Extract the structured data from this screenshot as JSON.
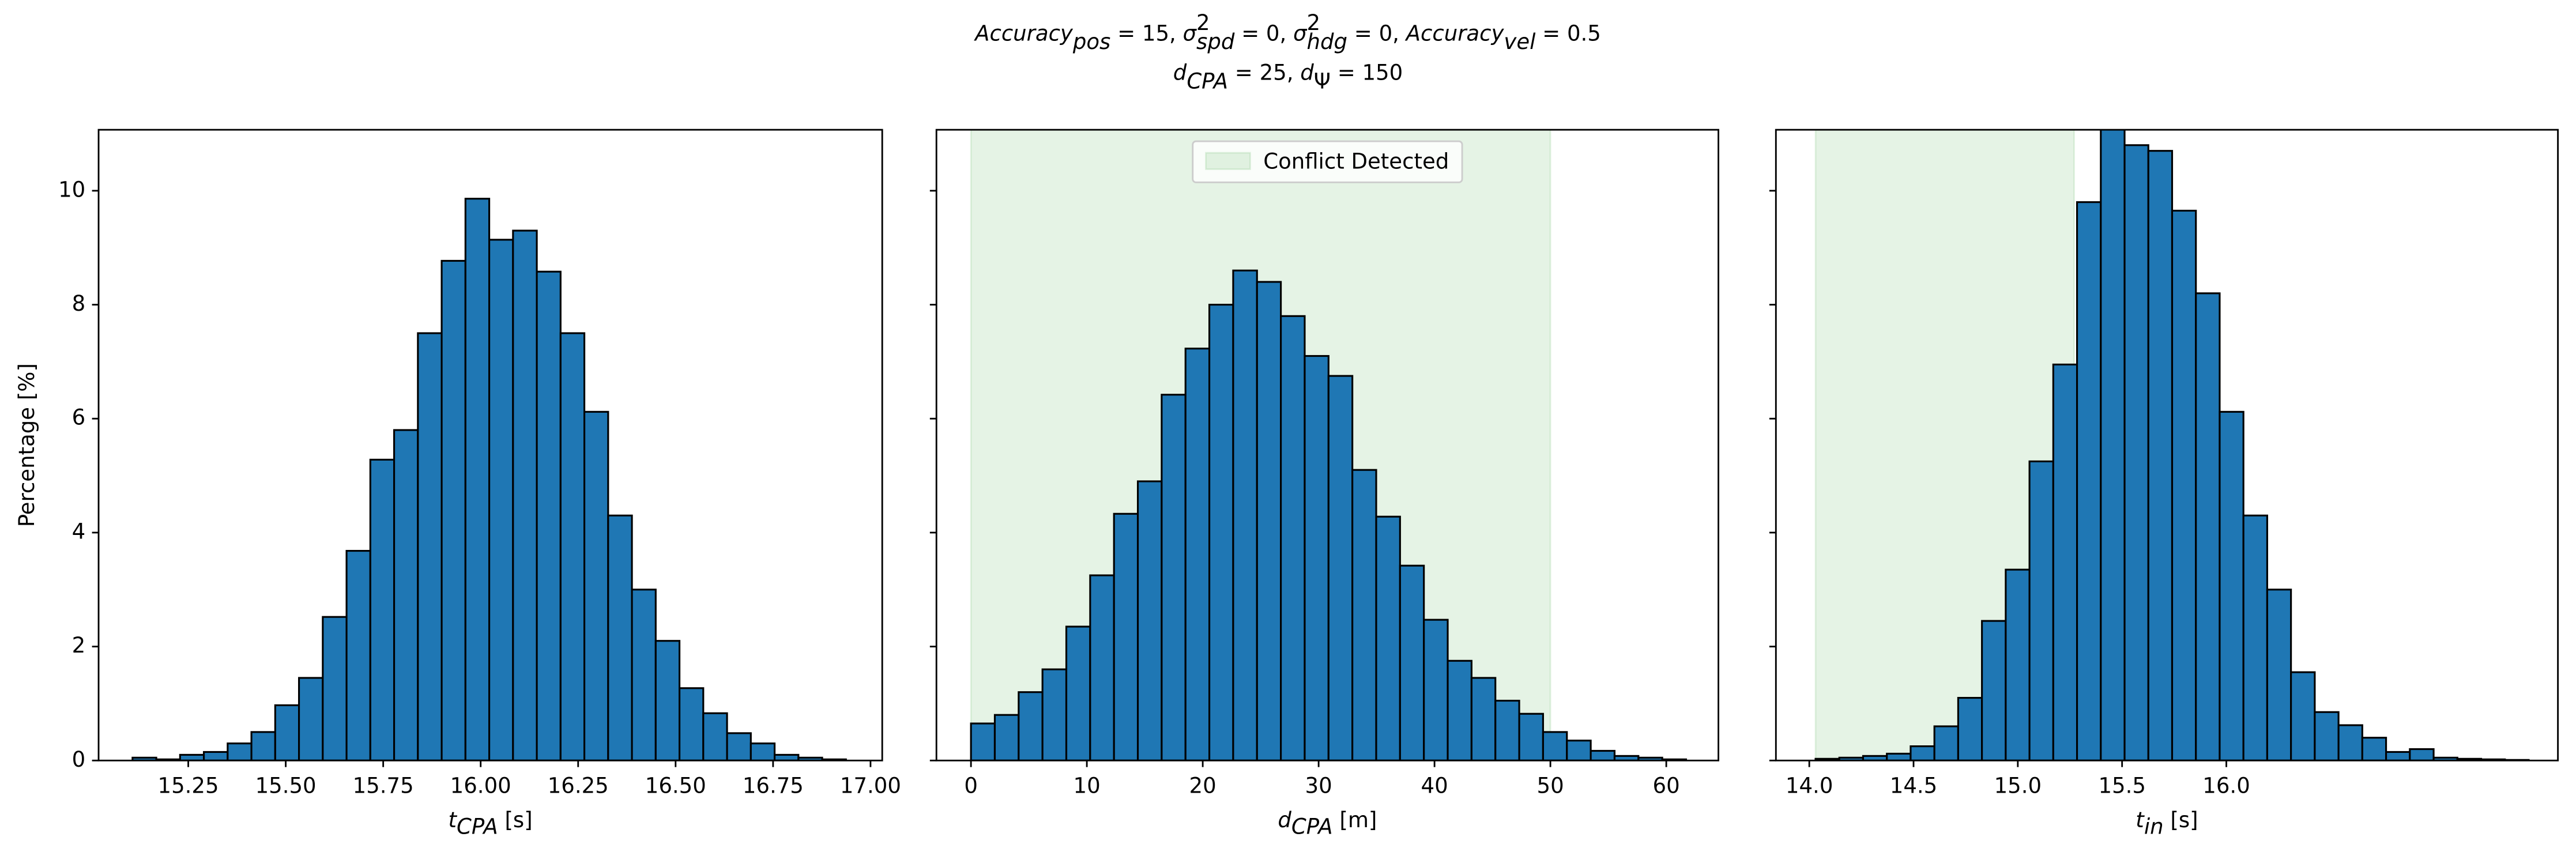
{
  "title": [
    [
      {
        "text": "Accuracy",
        "italic": true
      },
      {
        "text": "pos",
        "italic": true,
        "script": "sub"
      },
      {
        "text": " = 15, "
      },
      {
        "text": "σ",
        "italic": true
      },
      {
        "text": "2",
        "script": "sup"
      },
      {
        "text": "spd",
        "italic": true,
        "script": "sub",
        "stack": true
      },
      {
        "text": " = 0, "
      },
      {
        "text": "σ",
        "italic": true
      },
      {
        "text": "2",
        "script": "sup"
      },
      {
        "text": "hdg",
        "italic": true,
        "script": "sub",
        "stack": true
      },
      {
        "text": " = 0, "
      },
      {
        "text": "Accuracy",
        "italic": true
      },
      {
        "text": "vel",
        "italic": true,
        "script": "sub"
      },
      {
        "text": " = 0.5"
      }
    ],
    [
      {
        "text": "d",
        "italic": true
      },
      {
        "text": "CPA",
        "italic": true,
        "script": "sub"
      },
      {
        "text": " = 25, "
      },
      {
        "text": "d",
        "italic": true
      },
      {
        "text": "Ψ",
        "script": "sub"
      },
      {
        "text": " = 150"
      }
    ]
  ],
  "chart_data": [
    {
      "type": "histogram",
      "ylabel": "Percentage [%]",
      "xlabel": [
        {
          "text": "t",
          "italic": true
        },
        {
          "text": "CPA",
          "italic": true,
          "script": "sub"
        },
        {
          "text": " [s]"
        }
      ],
      "bins": [
        15.107,
        15.168,
        15.229,
        15.29,
        15.351,
        15.412,
        15.473,
        15.534,
        15.595,
        15.656,
        15.717,
        15.778,
        15.839,
        15.9,
        15.961,
        16.022,
        16.083,
        16.144,
        16.205,
        16.266,
        16.327,
        16.388,
        16.449,
        16.51,
        16.571,
        16.632,
        16.693,
        16.754,
        16.815,
        16.876,
        16.937
      ],
      "values": [
        0.05,
        0.02,
        0.1,
        0.15,
        0.3,
        0.5,
        0.97,
        1.45,
        2.52,
        3.68,
        5.28,
        5.8,
        7.5,
        8.77,
        9.86,
        9.14,
        9.3,
        8.58,
        7.5,
        6.12,
        4.3,
        3.0,
        2.1,
        1.27,
        0.83,
        0.48,
        0.3,
        0.1,
        0.05,
        0.02
      ],
      "color": "#1f77b4",
      "edgecolor": "#000000",
      "xlim": [
        15.02,
        17.03
      ],
      "xticks": [
        15.25,
        {
          "value": 15.5,
          "label": "15.50"
        },
        15.75,
        {
          "value": 16.0,
          "label": "16.00"
        },
        16.25,
        {
          "value": 16.5,
          "label": "16.50"
        },
        16.75,
        {
          "value": 17.0,
          "label": "17.00"
        }
      ],
      "ylim": [
        0,
        11.07
      ],
      "yticks": [
        0,
        2,
        4,
        6,
        8,
        10
      ],
      "ytick_labels": true
    },
    {
      "type": "histogram",
      "xlabel": [
        {
          "text": "d",
          "italic": true
        },
        {
          "text": "CPA",
          "italic": true,
          "script": "sub"
        },
        {
          "text": " [m]"
        }
      ],
      "bins": [
        0,
        2.057,
        4.114,
        6.171,
        8.228,
        10.285,
        12.342,
        14.399,
        16.456,
        18.513,
        20.57,
        22.627,
        24.684,
        26.741,
        28.798,
        30.855,
        32.912,
        34.969,
        37.026,
        39.083,
        41.14,
        43.197,
        45.254,
        47.311,
        49.368,
        51.425,
        53.482,
        55.539,
        57.596,
        59.653,
        61.71
      ],
      "values": [
        0.65,
        0.8,
        1.2,
        1.6,
        2.35,
        3.25,
        4.33,
        4.9,
        6.42,
        7.23,
        8.0,
        8.6,
        8.4,
        7.8,
        7.1,
        6.75,
        5.1,
        4.28,
        3.42,
        2.47,
        1.75,
        1.45,
        1.05,
        0.82,
        0.5,
        0.35,
        0.17,
        0.08,
        0.05,
        0.02
      ],
      "color": "#1f77b4",
      "edgecolor": "#000000",
      "xlim": [
        -2.98,
        64.5
      ],
      "xticks": [
        0,
        10,
        20,
        30,
        40,
        50,
        60
      ],
      "ylim": [
        0,
        11.07
      ],
      "yticks": [
        0,
        2,
        4,
        6,
        8,
        10
      ],
      "ytick_labels": false,
      "span": [
        0,
        50
      ],
      "span_color": "#2ca02c",
      "span_label": "Conflict Detected",
      "legend": "upper center"
    },
    {
      "type": "histogram",
      "xlabel": [
        {
          "text": "t",
          "italic": true
        },
        {
          "text": "in",
          "italic": true,
          "script": "sub"
        },
        {
          "text": " [s]"
        }
      ],
      "bins": [
        14.03,
        14.144,
        14.258,
        14.372,
        14.486,
        14.6,
        14.714,
        14.828,
        14.942,
        15.056,
        15.17,
        15.284,
        15.398,
        15.512,
        15.626,
        15.74,
        15.854,
        15.968,
        16.082,
        16.196,
        16.31,
        16.424,
        16.538,
        16.652,
        16.766,
        16.88,
        16.994,
        17.108,
        17.222,
        17.336,
        17.45
      ],
      "values": [
        0.03,
        0.05,
        0.08,
        0.12,
        0.25,
        0.6,
        1.1,
        2.45,
        3.35,
        5.25,
        6.95,
        9.8,
        11.2,
        10.8,
        10.7,
        9.65,
        8.2,
        6.12,
        4.3,
        3.0,
        1.55,
        0.85,
        0.62,
        0.4,
        0.15,
        0.2,
        0.05,
        0.03,
        0.02,
        0.01
      ],
      "color": "#1f77b4",
      "edgecolor": "#000000",
      "xlim": [
        13.84,
        17.59
      ],
      "xticks": [
        {
          "value": 14.0,
          "label": "14.0"
        },
        14.5,
        {
          "value": 15.0,
          "label": "15.0"
        },
        15.5,
        {
          "value": 16.0,
          "label": "16.0"
        }
      ],
      "ylim": [
        0,
        11.07
      ],
      "yticks": [
        0,
        2,
        4,
        6,
        8,
        10
      ],
      "ytick_labels": false,
      "span": [
        14.03,
        15.27
      ],
      "span_color": "#2ca02c"
    }
  ]
}
